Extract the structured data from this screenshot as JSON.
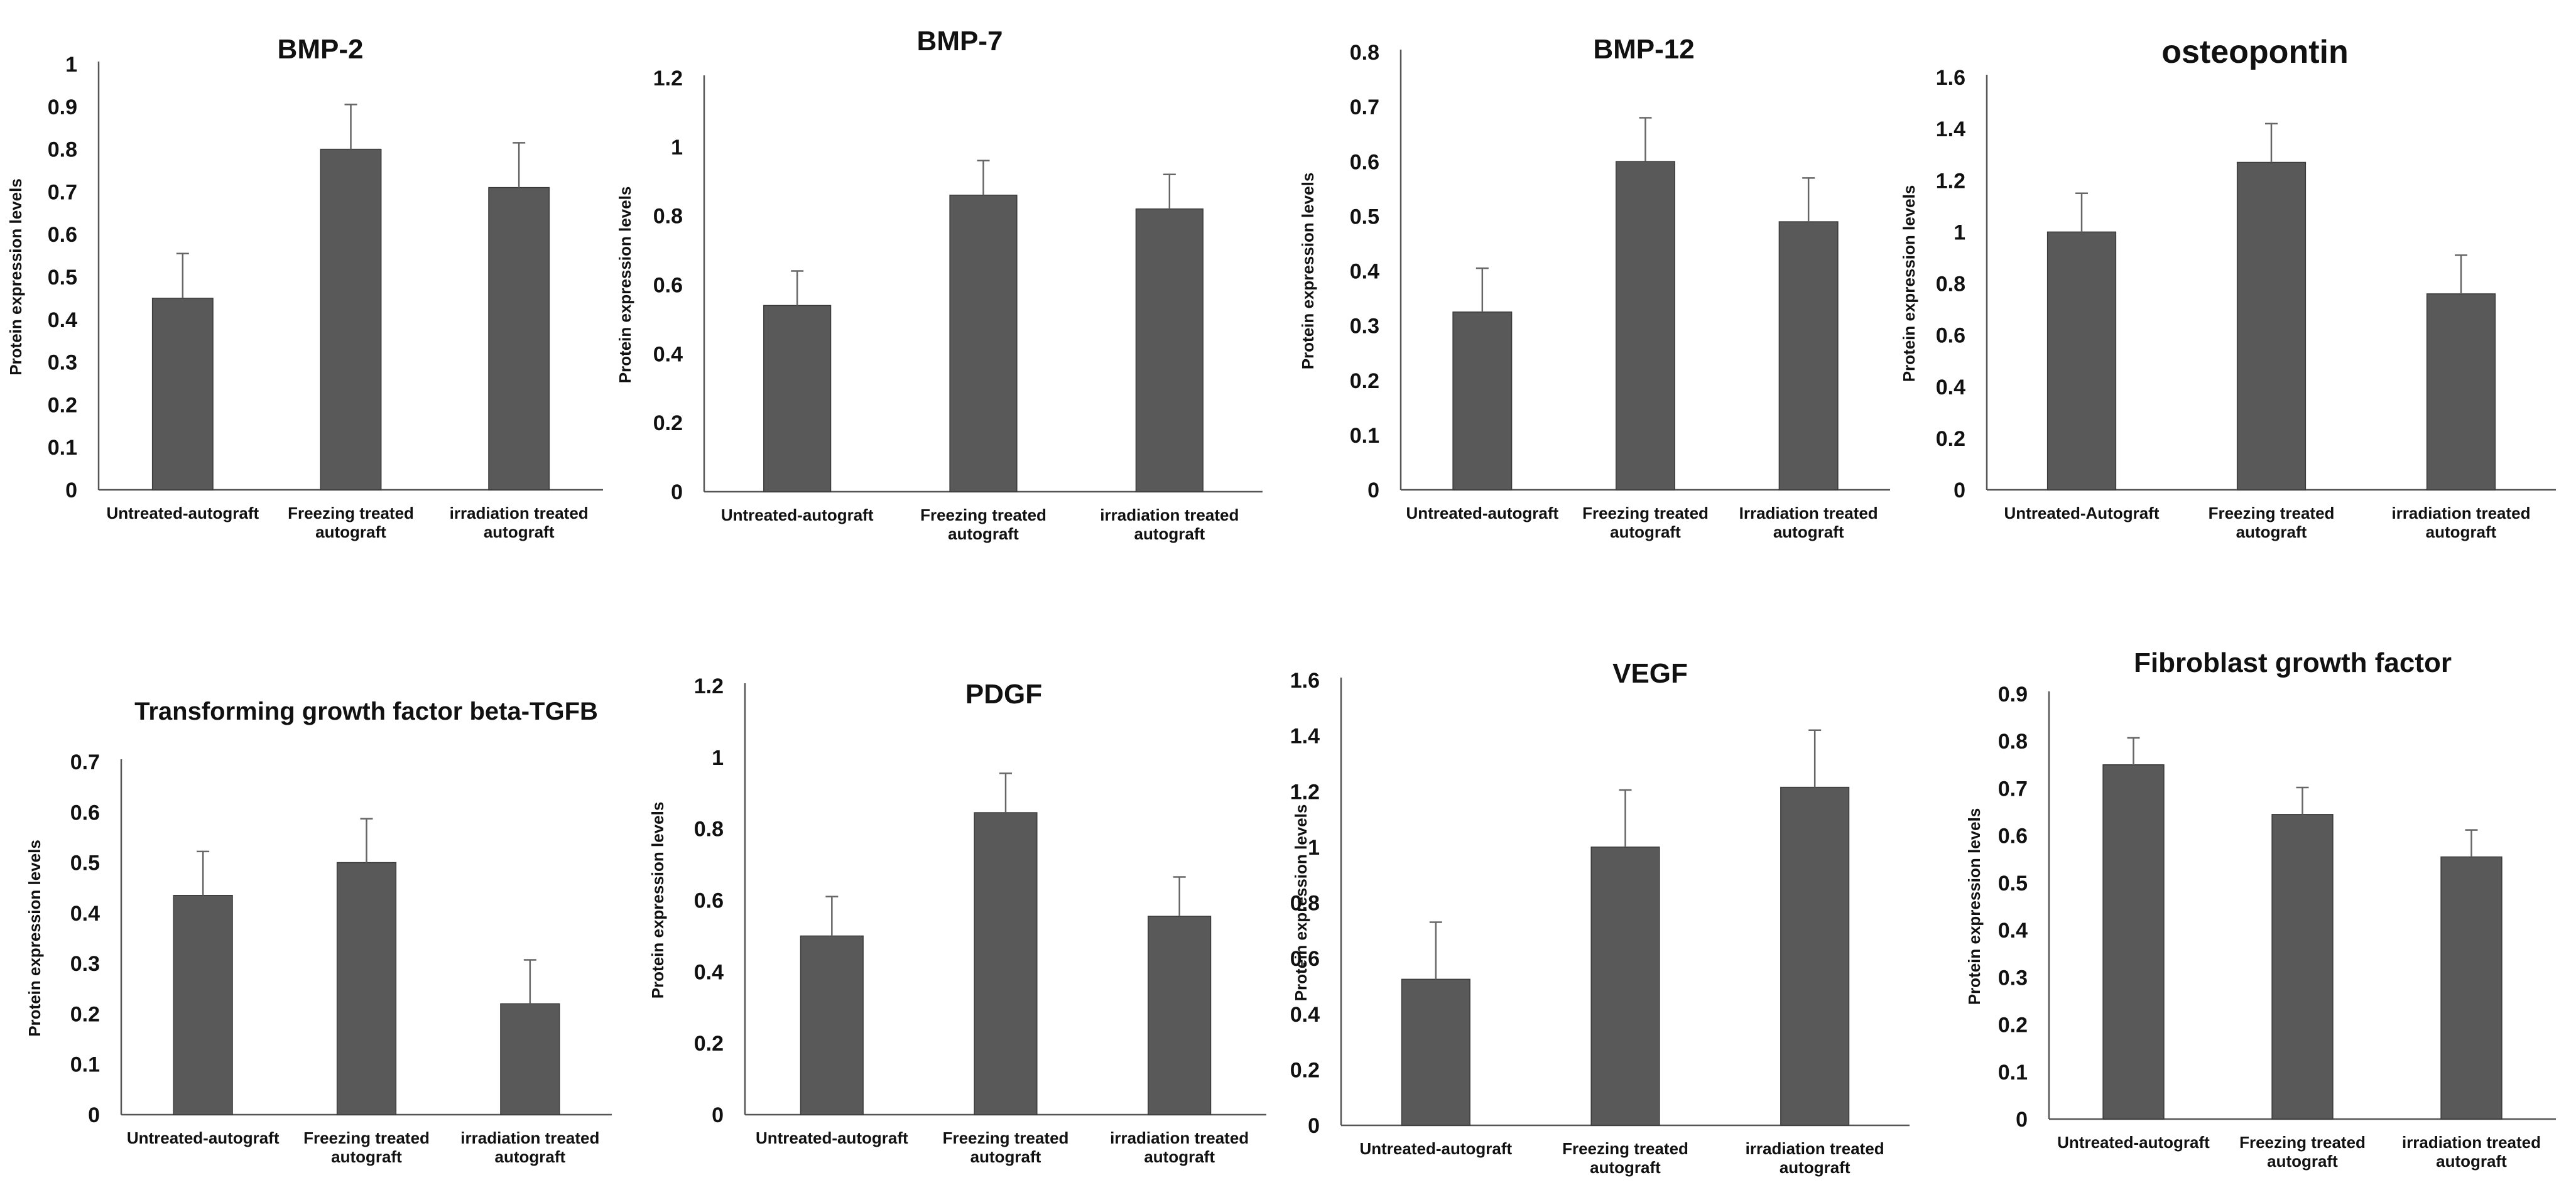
{
  "colors": {
    "bar": "#595959",
    "bar_edge": "#3a3a3a",
    "axis": "#555555",
    "text": "#111111"
  },
  "chart_data": [
    {
      "type": "bar",
      "title": "BMP-2",
      "ylabel": "Protein expression levels",
      "categories": [
        [
          "Untreated-autograft"
        ],
        [
          "Freezing treated",
          "autograft"
        ],
        [
          "irradiation treated",
          "autograft"
        ]
      ],
      "values": [
        0.45,
        0.8,
        0.71
      ],
      "errors": [
        0.105,
        0.105,
        0.105
      ],
      "yticks": [
        "0",
        "0.1",
        "0.2",
        "0.3",
        "0.4",
        "0.5",
        "0.6",
        "0.7",
        "0.8",
        "0.9",
        "1"
      ],
      "ylim": [
        0,
        1
      ]
    },
    {
      "type": "bar",
      "title": "BMP-7",
      "ylabel": "Protein expression levels",
      "categories": [
        [
          "Untreated-autograft"
        ],
        [
          "Freezing treated",
          "autograft"
        ],
        [
          "irradiation treated",
          "autograft"
        ]
      ],
      "values": [
        0.54,
        0.86,
        0.82
      ],
      "errors": [
        0.1,
        0.1,
        0.1
      ],
      "yticks": [
        "0",
        "0.2",
        "0.4",
        "0.6",
        "0.8",
        "1",
        "1.2"
      ],
      "ylim": [
        0,
        1.2
      ]
    },
    {
      "type": "bar",
      "title": "BMP-12",
      "ylabel": "Protein expression levels",
      "categories": [
        [
          "Untreated-autograft"
        ],
        [
          "Freezing treated",
          "autograft"
        ],
        [
          "Irradiation treated",
          "autograft"
        ]
      ],
      "values": [
        0.325,
        0.6,
        0.49
      ],
      "errors": [
        0.08,
        0.08,
        0.08
      ],
      "yticks": [
        "0",
        "0.1",
        "0.2",
        "0.3",
        "0.4",
        "0.5",
        "0.6",
        "0.7",
        "0.8"
      ],
      "ylim": [
        0,
        0.8
      ]
    },
    {
      "type": "bar",
      "title": "osteopontin",
      "ylabel": "Protein expression levels",
      "categories": [
        [
          "Untreated-Autograft"
        ],
        [
          "Freezing treated",
          "autograft"
        ],
        [
          "irradiation treated",
          "autograft"
        ]
      ],
      "values": [
        1.0,
        1.27,
        0.76
      ],
      "errors": [
        0.15,
        0.15,
        0.15
      ],
      "yticks": [
        "0",
        "0.2",
        "0.4",
        "0.6",
        "0.8",
        "1",
        "1.2",
        "1.4",
        "1.6"
      ],
      "ylim": [
        0,
        1.6
      ]
    },
    {
      "type": "bar",
      "title": "Transforming growth factor beta-TGFB",
      "ylabel": "Protein expression levels",
      "categories": [
        [
          "Untreated-autograft"
        ],
        [
          "Freezing treated",
          "autograft"
        ],
        [
          "irradiation treated",
          "autograft"
        ]
      ],
      "values": [
        0.435,
        0.5,
        0.22
      ],
      "errors": [
        0.087,
        0.087,
        0.087
      ],
      "yticks": [
        "0",
        "0.1",
        "0.2",
        "0.3",
        "0.4",
        "0.5",
        "0.6",
        "0.7"
      ],
      "ylim": [
        0,
        0.7
      ]
    },
    {
      "type": "bar",
      "title": "PDGF",
      "ylabel": "Protein expression levels",
      "categories": [
        [
          "Untreated-autograft"
        ],
        [
          "Freezing treated",
          "autograft"
        ],
        [
          "irradiation treated",
          "autograft"
        ]
      ],
      "values": [
        0.5,
        0.845,
        0.555
      ],
      "errors": [
        0.11,
        0.11,
        0.11
      ],
      "yticks": [
        "0",
        "0.2",
        "0.4",
        "0.6",
        "0.8",
        "1",
        "1.2"
      ],
      "ylim": [
        0,
        1.2
      ]
    },
    {
      "type": "bar",
      "title": "VEGF",
      "ylabel": "Protein expression levels",
      "categories": [
        [
          "Untreated-autograft"
        ],
        [
          "Freezing treated",
          "autograft"
        ],
        [
          "irradiation treated",
          "autograft"
        ]
      ],
      "values": [
        0.525,
        1.0,
        1.215
      ],
      "errors": [
        0.205,
        0.205,
        0.205
      ],
      "yticks": [
        "0",
        "0.2",
        "0.4",
        "0.6",
        "0.8",
        "1",
        "1.2",
        "1.4",
        "1.6"
      ],
      "ylim": [
        0,
        1.6
      ]
    },
    {
      "type": "bar",
      "title": "Fibroblast growth factor",
      "ylabel": "Protein expression levels",
      "categories": [
        [
          "Untreated-autograft"
        ],
        [
          "Freezing treated",
          "autograft"
        ],
        [
          "irradiation treated",
          "autograft"
        ]
      ],
      "values": [
        0.75,
        0.645,
        0.555
      ],
      "errors": [
        0.057,
        0.057,
        0.057
      ],
      "yticks": [
        "0",
        "0.1",
        "0.2",
        "0.3",
        "0.4",
        "0.5",
        "0.6",
        "0.7",
        "0.8",
        "0.9"
      ],
      "ylim": [
        0,
        0.9
      ]
    }
  ]
}
